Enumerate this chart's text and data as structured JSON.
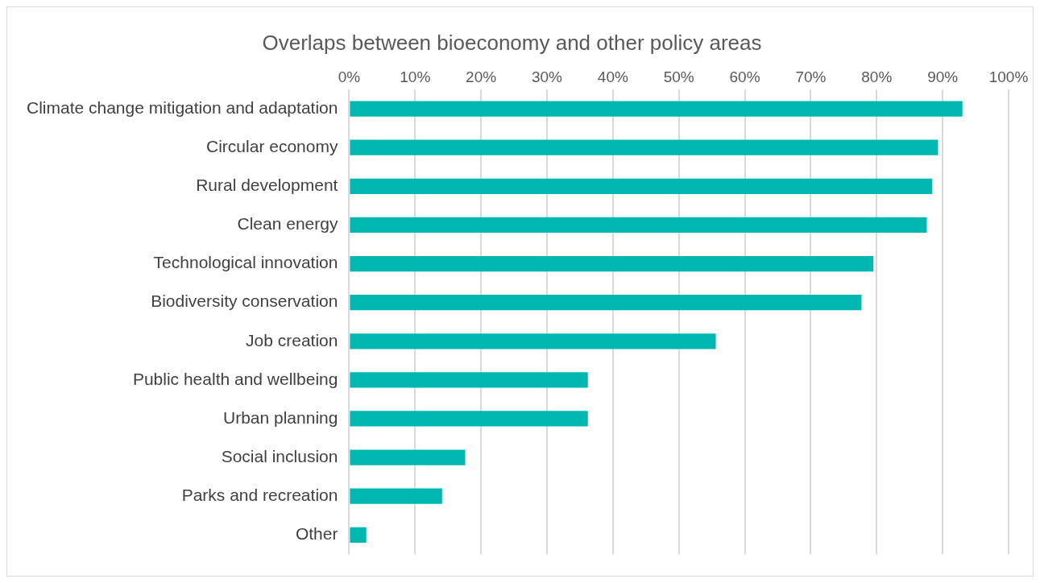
{
  "chart_data": {
    "type": "bar",
    "orientation": "horizontal",
    "title": "Overlaps between bioeconomy and other policy areas",
    "categories": [
      "Climate change mitigation and adaptation",
      "Circular economy",
      "Rural development",
      "Clean energy",
      "Technological innovation",
      "Biodiversity conservation",
      "Job creation",
      "Public health and wellbeing",
      "Urban planning",
      "Social inclusion",
      "Parks and recreation",
      "Other"
    ],
    "values": [
      93,
      89.3,
      88.4,
      87.6,
      79.5,
      77.7,
      55.6,
      36.2,
      36.2,
      17.6,
      14.1,
      2.6
    ],
    "color": "#00b8b0",
    "xlim": [
      0,
      100
    ],
    "xticks": [
      {
        "value": 0,
        "label": "0%"
      },
      {
        "value": 10,
        "label": "10%"
      },
      {
        "value": 20,
        "label": "20%"
      },
      {
        "value": 30,
        "label": "30%"
      },
      {
        "value": 40,
        "label": "40%"
      },
      {
        "value": 50,
        "label": "50%"
      },
      {
        "value": 60,
        "label": "60%"
      },
      {
        "value": 70,
        "label": "70%"
      },
      {
        "value": 80,
        "label": "80%"
      },
      {
        "value": 90,
        "label": "90%"
      },
      {
        "value": 100,
        "label": "100%"
      }
    ],
    "grid": "x",
    "legend": false
  }
}
